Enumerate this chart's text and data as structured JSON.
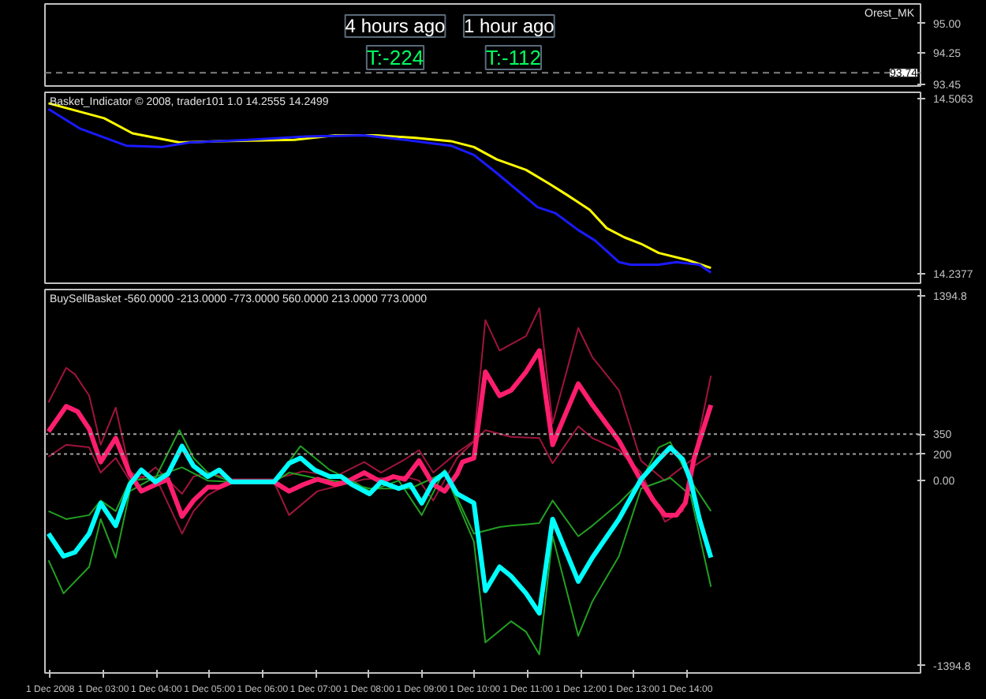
{
  "chart_data": [
    {
      "type": "line",
      "title": "Orest_MK",
      "xlim": [
        "2008-12-01T01:54",
        "2008-12-01T18:24"
      ],
      "ylim": [
        93.4,
        95.5
      ],
      "yticks": [
        {
          "value": 95,
          "label": "95.00"
        },
        94.25,
        93.45
      ],
      "tick_labels": "y",
      "grid": false,
      "ref_lines": [
        {
          "axis": "y",
          "value": 93.74,
          "label": "93.74",
          "color": "#808080",
          "line_style": "dashed"
        }
      ],
      "annotations": [
        "4 hours ago",
        "1 hour ago",
        "T:-224",
        "T:-112"
      ]
    },
    {
      "type": "line",
      "title": "Basket_Indicator © 2008, trader101 1.0 14.2555 14.2499",
      "xlim": [
        "2008-12-01T01:54",
        "2008-12-01T18:24"
      ],
      "ylim": [
        14.2237,
        14.5157
      ],
      "yticks": [
        14.5063,
        14.2377
      ],
      "tick_labels": "y",
      "grid": false,
      "series": [
        {
          "color": "#ffff00",
          "x": [
            "2008-12-01T01:58",
            "2008-12-01T03:01",
            "2008-12-01T03:33",
            "2008-12-01T04:26",
            "2008-12-01T05:11",
            "2008-12-01T06:36",
            "2008-12-01T07:22",
            "2008-12-01T08:08",
            "2008-12-01T08:53",
            "2008-12-01T09:33",
            "2008-12-01T09:59",
            "2008-12-01T10:25",
            "2008-12-01T10:58",
            "2008-12-01T11:24",
            "2008-12-01T11:44",
            "2008-12-01T12:10",
            "2008-12-01T12:29",
            "2008-12-01T12:49",
            "2008-12-01T13:08",
            "2008-12-01T13:28",
            "2008-12-01T14:01",
            "2008-12-01T14:27"
          ],
          "values": [
            14.499,
            14.476,
            14.453,
            14.439,
            14.441,
            14.443,
            14.45,
            14.45,
            14.446,
            14.441,
            14.432,
            14.413,
            14.397,
            14.376,
            14.359,
            14.336,
            14.308,
            14.294,
            14.284,
            14.27,
            14.259,
            14.247
          ]
        },
        {
          "color": "#1a1aff",
          "x": [
            "2008-12-01T01:58",
            "2008-12-01T02:34",
            "2008-12-01T03:26",
            "2008-12-01T04:06",
            "2008-12-01T04:38",
            "2008-12-01T05:44",
            "2008-12-01T06:49",
            "2008-12-01T07:55",
            "2008-12-01T08:41",
            "2008-12-01T09:33",
            "2008-12-01T09:59",
            "2008-12-01T10:25",
            "2008-12-01T11:11",
            "2008-12-01T11:31",
            "2008-12-01T11:57",
            "2008-12-01T12:16",
            "2008-12-01T12:43",
            "2008-12-01T12:56",
            "2008-12-01T13:28",
            "2008-12-01T13:48",
            "2008-12-01T14:14",
            "2008-12-01T14:27"
          ],
          "values": [
            14.49,
            14.46,
            14.434,
            14.432,
            14.439,
            14.443,
            14.448,
            14.45,
            14.443,
            14.434,
            14.42,
            14.392,
            14.34,
            14.331,
            14.305,
            14.289,
            14.256,
            14.252,
            14.252,
            14.256,
            14.252,
            14.24
          ]
        }
      ]
    },
    {
      "type": "line",
      "title": "BuySellBasket -560.0000 -213.0000 -773.0000 560.0000 213.0000 773.0000",
      "xlim": [
        "2008-12-01T01:54",
        "2008-12-01T18:24"
      ],
      "ylim": [
        -1450,
        1440
      ],
      "yticks": [
        1394.8,
        350,
        200,
        {
          "value": 0,
          "label": "0.00"
        },
        -1394.8
      ],
      "xticks": [
        {
          "value": "2008-12-01T02:00",
          "label": "1 Dec 2008"
        },
        {
          "value": "2008-12-01T03:00",
          "label": "1 Dec 03:00"
        },
        {
          "value": "2008-12-01T04:00",
          "label": "1 Dec 04:00"
        },
        {
          "value": "2008-12-01T05:00",
          "label": "1 Dec 05:00"
        },
        {
          "value": "2008-12-01T06:00",
          "label": "1 Dec 06:00"
        },
        {
          "value": "2008-12-01T07:00",
          "label": "1 Dec 07:00"
        },
        {
          "value": "2008-12-01T08:00",
          "label": "1 Dec 08:00"
        },
        {
          "value": "2008-12-01T09:00",
          "label": "1 Dec 09:00"
        },
        {
          "value": "2008-12-01T10:00",
          "label": "1 Dec 10:00"
        },
        {
          "value": "2008-12-01T11:00",
          "label": "1 Dec 11:00"
        },
        {
          "value": "2008-12-01T12:00",
          "label": "1 Dec 12:00"
        },
        {
          "value": "2008-12-01T13:00",
          "label": "1 Dec 13:00"
        },
        {
          "value": "2008-12-01T14:00",
          "label": "1 Dec 14:00"
        }
      ],
      "grid": false,
      "ref_lines": [
        {
          "axis": "y",
          "value": 350,
          "color": "#a0a0a0",
          "line_style": "dotted"
        },
        {
          "axis": "y",
          "value": 200,
          "color": "#a0a0a0",
          "line_style": "dotted"
        }
      ],
      "series": [
        {
          "color": "#a0143c",
          "x": [
            "2008-12-01T01:58",
            "2008-12-01T02:18",
            "2008-12-01T02:28",
            "2008-12-01T02:44",
            "2008-12-01T02:57",
            "2008-12-01T03:14",
            "2008-12-01T03:30",
            "2008-12-01T03:43",
            "2008-12-01T03:59",
            "2008-12-01T04:29",
            "2008-12-01T04:42",
            "2008-12-01T04:58",
            "2008-12-01T05:25",
            "2008-12-01T06:13",
            "2008-12-01T06:46",
            "2008-12-01T07:22",
            "2008-12-01T07:55",
            "2008-12-01T08:14",
            "2008-12-01T08:41",
            "2008-12-01T08:57",
            "2008-12-01T09:13",
            "2008-12-01T09:40",
            "2008-12-01T09:59",
            "2008-12-01T10:12",
            "2008-12-01T10:28",
            "2008-12-01T10:58",
            "2008-12-01T11:13",
            "2008-12-01T11:28",
            "2008-12-01T11:57",
            "2008-12-01T12:13",
            "2008-12-01T12:43",
            "2008-12-01T13:08",
            "2008-12-01T13:35",
            "2008-12-01T14:08",
            "2008-12-01T14:27"
          ],
          "values": [
            590,
            850,
            800,
            640,
            270,
            550,
            70,
            10,
            100,
            -100,
            30,
            60,
            10,
            10,
            70,
            30,
            140,
            60,
            160,
            230,
            60,
            210,
            300,
            1210,
            980,
            1090,
            1300,
            430,
            1150,
            930,
            680,
            150,
            0,
            170,
            790
          ]
        },
        {
          "color": "#a0143c",
          "x": [
            "2008-12-01T01:58",
            "2008-12-01T02:18",
            "2008-12-01T02:44",
            "2008-12-01T02:57",
            "2008-12-01T03:14",
            "2008-12-01T03:30",
            "2008-12-01T03:43",
            "2008-12-01T03:59",
            "2008-12-01T04:29",
            "2008-12-01T04:42",
            "2008-12-01T04:58",
            "2008-12-01T05:25",
            "2008-12-01T06:13",
            "2008-12-01T06:30",
            "2008-12-01T07:02",
            "2008-12-01T07:55",
            "2008-12-01T08:41",
            "2008-12-01T08:57",
            "2008-12-01T09:13",
            "2008-12-01T09:40",
            "2008-12-01T10:12",
            "2008-12-01T10:41",
            "2008-12-01T11:13",
            "2008-12-01T11:28",
            "2008-12-01T11:57",
            "2008-12-01T12:13",
            "2008-12-01T12:43",
            "2008-12-01T13:08",
            "2008-12-01T13:35",
            "2008-12-01T13:55",
            "2008-12-01T14:08",
            "2008-12-01T14:27"
          ],
          "values": [
            180,
            270,
            250,
            60,
            170,
            0,
            30,
            30,
            -400,
            -230,
            -110,
            -10,
            -10,
            -260,
            -80,
            10,
            30,
            0,
            -150,
            170,
            380,
            330,
            320,
            130,
            410,
            320,
            230,
            60,
            -310,
            -230,
            110,
            190
          ]
        },
        {
          "color": "#22a022",
          "x": [
            "2008-12-01T01:58",
            "2008-12-01T02:18",
            "2008-12-01T02:44",
            "2008-12-01T02:57",
            "2008-12-01T03:14",
            "2008-12-01T03:30",
            "2008-12-01T03:59",
            "2008-12-01T04:26",
            "2008-12-01T04:42",
            "2008-12-01T04:58",
            "2008-12-01T05:25",
            "2008-12-01T06:13",
            "2008-12-01T06:43",
            "2008-12-01T07:16",
            "2008-12-01T07:41",
            "2008-12-01T08:01",
            "2008-12-01T08:34",
            "2008-12-01T09:00",
            "2008-12-01T09:26",
            "2008-12-01T09:40",
            "2008-12-01T09:59",
            "2008-12-01T10:28",
            "2008-12-01T10:41",
            "2008-12-01T10:58",
            "2008-12-01T11:13",
            "2008-12-01T11:28",
            "2008-12-01T11:57",
            "2008-12-01T12:13",
            "2008-12-01T12:43",
            "2008-12-01T13:08",
            "2008-12-01T13:28",
            "2008-12-01T13:41",
            "2008-12-01T14:04",
            "2008-12-01T14:27"
          ],
          "values": [
            -230,
            -290,
            -260,
            -150,
            -230,
            0,
            20,
            380,
            170,
            60,
            -10,
            -10,
            260,
            80,
            0,
            -80,
            0,
            -260,
            80,
            -130,
            -400,
            -350,
            -340,
            -330,
            -320,
            -150,
            -420,
            -340,
            -170,
            0,
            250,
            290,
            0,
            -230
          ]
        },
        {
          "color": "#22a022",
          "x": [
            "2008-12-01T01:58",
            "2008-12-01T02:15",
            "2008-12-01T02:44",
            "2008-12-01T02:57",
            "2008-12-01T03:14",
            "2008-12-01T03:30",
            "2008-12-01T03:59",
            "2008-12-01T04:29",
            "2008-12-01T04:58",
            "2008-12-01T05:25",
            "2008-12-01T06:13",
            "2008-12-01T06:30",
            "2008-12-01T06:59",
            "2008-12-01T07:29",
            "2008-12-01T08:01",
            "2008-12-01T08:47",
            "2008-12-01T09:26",
            "2008-12-01T09:59",
            "2008-12-01T10:12",
            "2008-12-01T10:41",
            "2008-12-01T10:58",
            "2008-12-01T11:13",
            "2008-12-01T11:28",
            "2008-12-01T11:57",
            "2008-12-01T12:13",
            "2008-12-01T12:43",
            "2008-12-01T13:08",
            "2008-12-01T13:41",
            "2008-12-01T14:04",
            "2008-12-01T14:27"
          ],
          "values": [
            -600,
            -850,
            -650,
            -290,
            -580,
            -80,
            30,
            100,
            0,
            -10,
            -10,
            60,
            20,
            -10,
            -60,
            -60,
            60,
            -460,
            -1220,
            -1060,
            -1140,
            -1310,
            -420,
            -1170,
            -910,
            -570,
            -60,
            20,
            -110,
            -800
          ]
        },
        {
          "color": "#ff1e6e",
          "x": [
            "2008-12-01T01:58",
            "2008-12-01T02:18",
            "2008-12-01T02:31",
            "2008-12-01T02:44",
            "2008-12-01T02:57",
            "2008-12-01T03:14",
            "2008-12-01T03:30",
            "2008-12-01T03:43",
            "2008-12-01T03:59",
            "2008-12-01T04:13",
            "2008-12-01T04:29",
            "2008-12-01T04:42",
            "2008-12-01T04:58",
            "2008-12-01T05:11",
            "2008-12-01T05:25",
            "2008-12-01T06:13",
            "2008-12-01T06:30",
            "2008-12-01T06:46",
            "2008-12-01T07:02",
            "2008-12-01T07:22",
            "2008-12-01T07:35",
            "2008-12-01T07:55",
            "2008-12-01T08:14",
            "2008-12-01T08:28",
            "2008-12-01T08:41",
            "2008-12-01T08:57",
            "2008-12-01T09:13",
            "2008-12-01T09:26",
            "2008-12-01T09:40",
            "2008-12-01T09:46",
            "2008-12-01T09:59",
            "2008-12-01T10:12",
            "2008-12-01T10:28",
            "2008-12-01T10:41",
            "2008-12-01T10:58",
            "2008-12-01T11:13",
            "2008-12-01T11:28",
            "2008-12-01T11:57",
            "2008-12-01T12:13",
            "2008-12-01T12:43",
            "2008-12-01T13:08",
            "2008-12-01T13:22",
            "2008-12-01T13:35",
            "2008-12-01T13:48",
            "2008-12-01T13:58",
            "2008-12-01T14:08",
            "2008-12-01T14:27"
          ],
          "values": [
            370,
            560,
            520,
            390,
            140,
            320,
            50,
            -80,
            -30,
            10,
            -270,
            -150,
            -50,
            -50,
            -10,
            -10,
            -80,
            -30,
            10,
            -30,
            -10,
            60,
            -10,
            30,
            10,
            150,
            -30,
            -80,
            50,
            140,
            170,
            820,
            640,
            680,
            820,
            980,
            270,
            730,
            570,
            300,
            0,
            -150,
            -260,
            -260,
            -170,
            170,
            570
          ]
        },
        {
          "color": "#00ffff",
          "x": [
            "2008-12-01T01:58",
            "2008-12-01T02:15",
            "2008-12-01T02:28",
            "2008-12-01T02:44",
            "2008-12-01T02:57",
            "2008-12-01T03:14",
            "2008-12-01T03:30",
            "2008-12-01T03:43",
            "2008-12-01T03:59",
            "2008-12-01T04:13",
            "2008-12-01T04:29",
            "2008-12-01T04:42",
            "2008-12-01T04:58",
            "2008-12-01T05:11",
            "2008-12-01T05:25",
            "2008-12-01T06:13",
            "2008-12-01T06:30",
            "2008-12-01T06:43",
            "2008-12-01T06:59",
            "2008-12-01T07:16",
            "2008-12-01T07:29",
            "2008-12-01T07:41",
            "2008-12-01T08:01",
            "2008-12-01T08:14",
            "2008-12-01T08:34",
            "2008-12-01T08:47",
            "2008-12-01T09:00",
            "2008-12-01T09:13",
            "2008-12-01T09:26",
            "2008-12-01T09:40",
            "2008-12-01T09:59",
            "2008-12-01T10:12",
            "2008-12-01T10:28",
            "2008-12-01T10:41",
            "2008-12-01T10:58",
            "2008-12-01T11:13",
            "2008-12-01T11:28",
            "2008-12-01T11:57",
            "2008-12-01T12:13",
            "2008-12-01T12:43",
            "2008-12-01T13:08",
            "2008-12-01T13:28",
            "2008-12-01T13:41",
            "2008-12-01T13:55",
            "2008-12-01T14:04",
            "2008-12-01T14:14",
            "2008-12-01T14:27"
          ],
          "values": [
            -400,
            -570,
            -540,
            -400,
            -170,
            -340,
            -30,
            80,
            -10,
            50,
            260,
            110,
            30,
            80,
            -10,
            -10,
            130,
            170,
            80,
            30,
            30,
            -30,
            -100,
            -10,
            -60,
            -30,
            -170,
            -10,
            60,
            -100,
            -170,
            -830,
            -650,
            -720,
            -850,
            -1000,
            -290,
            -760,
            -580,
            -290,
            10,
            160,
            250,
            160,
            0,
            -290,
            -580
          ]
        }
      ]
    }
  ]
}
